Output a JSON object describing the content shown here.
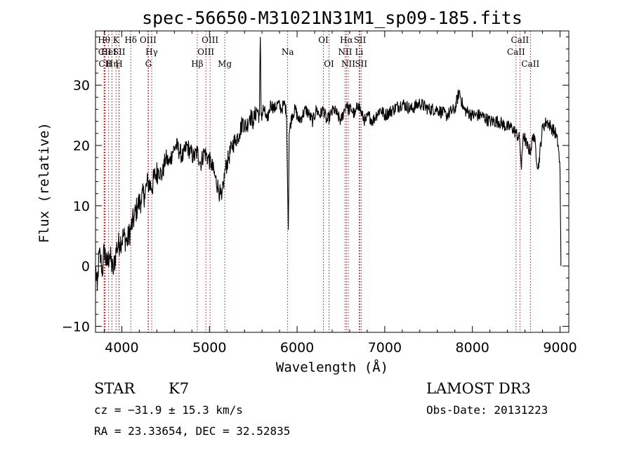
{
  "chart_data": {
    "type": "line",
    "title": "spec-56650-M31021N31M1_sp09-185.fits",
    "xlabel": "Wavelength (Å)",
    "ylabel": "Flux (relative)",
    "xlim": [
      3700,
      9100
    ],
    "ylim": [
      -11,
      39
    ],
    "xticks": [
      4000,
      5000,
      6000,
      7000,
      8000,
      9000
    ],
    "yticks": [
      -10,
      0,
      10,
      20,
      30
    ],
    "series": [
      {
        "name": "flux",
        "x": [
          3700,
          3720,
          3740,
          3760,
          3780,
          3800,
          3830,
          3860,
          3900,
          3940,
          3980,
          4020,
          4060,
          4100,
          4140,
          4180,
          4220,
          4260,
          4300,
          4340,
          4380,
          4420,
          4460,
          4500,
          4540,
          4580,
          4620,
          4660,
          4700,
          4740,
          4780,
          4820,
          4860,
          4900,
          4940,
          4980,
          5020,
          5060,
          5100,
          5140,
          5180,
          5220,
          5260,
          5300,
          5340,
          5380,
          5420,
          5460,
          5500,
          5540,
          5570,
          5580,
          5590,
          5620,
          5660,
          5700,
          5740,
          5780,
          5820,
          5860,
          5880,
          5895,
          5900,
          5910,
          5940,
          5980,
          6020,
          6060,
          6100,
          6140,
          6180,
          6220,
          6260,
          6300,
          6340,
          6380,
          6420,
          6460,
          6500,
          6540,
          6563,
          6580,
          6620,
          6660,
          6700,
          6740,
          6780,
          6820,
          6860,
          6900,
          6950,
          7000,
          7100,
          7200,
          7300,
          7400,
          7500,
          7600,
          7700,
          7800,
          7850,
          7900,
          8000,
          8100,
          8200,
          8300,
          8400,
          8450,
          8500,
          8540,
          8560,
          8580,
          8620,
          8660,
          8700,
          8750,
          8800,
          8850,
          8900,
          8950,
          8980,
          9000,
          9010
        ],
        "y": [
          0,
          -4,
          2,
          1,
          -1,
          3,
          0,
          2,
          -1,
          3,
          4,
          5,
          4,
          6,
          8,
          10,
          11,
          12,
          14,
          13,
          15,
          16,
          15,
          18,
          17,
          19,
          20,
          19,
          18,
          20,
          19,
          18,
          19,
          17,
          19,
          18,
          17,
          15,
          13,
          11,
          16,
          18,
          20,
          21,
          22,
          24,
          23,
          25,
          24,
          26,
          25,
          38,
          25,
          26,
          24,
          27,
          26,
          27,
          26,
          27,
          25,
          10,
          6,
          22,
          25,
          26,
          24,
          25,
          26,
          25,
          24,
          26,
          25,
          26,
          24,
          25,
          26,
          25,
          24,
          26,
          27,
          26,
          26,
          25,
          27,
          25,
          24,
          25,
          24,
          25,
          26,
          25,
          26,
          27,
          26,
          27,
          26,
          26,
          25,
          26,
          29,
          26,
          25,
          25,
          24,
          24,
          23,
          23,
          22,
          21,
          16,
          22,
          20,
          19,
          22,
          16,
          23,
          24,
          23,
          22,
          20,
          16,
          0
        ]
      }
    ],
    "spectral_lines": [
      {
        "label": "Hθ",
        "x": 3797,
        "row": 1
      },
      {
        "label": "CII",
        "x": 3805,
        "row": 2
      },
      {
        "label": "CII",
        "x": 3810,
        "row": 3
      },
      {
        "label": "HeI",
        "x": 3850,
        "row": 2
      },
      {
        "label": "Hη",
        "x": 3889,
        "row": 3
      },
      {
        "label": "K",
        "x": 3934,
        "row": 1
      },
      {
        "label": "SII",
        "x": 3970,
        "row": 2
      },
      {
        "label": "H",
        "x": 3968,
        "row": 3
      },
      {
        "label": "Hδ",
        "x": 4102,
        "row": 1
      },
      {
        "label": "OIII",
        "x": 4300,
        "row": 1
      },
      {
        "label": "Hγ",
        "x": 4341,
        "row": 2
      },
      {
        "label": "G",
        "x": 4304,
        "row": 3
      },
      {
        "label": "OIII",
        "x": 5007,
        "row": 1
      },
      {
        "label": "OIII",
        "x": 4959,
        "row": 2
      },
      {
        "label": "Hβ",
        "x": 4861,
        "row": 3
      },
      {
        "label": "Mg",
        "x": 5175,
        "row": 3
      },
      {
        "label": "Na",
        "x": 5893,
        "row": 2
      },
      {
        "label": "OI",
        "x": 6300,
        "row": 1
      },
      {
        "label": "OI",
        "x": 6364,
        "row": 3
      },
      {
        "label": "Hα",
        "x": 6563,
        "row": 1
      },
      {
        "label": "NII",
        "x": 6548,
        "row": 2
      },
      {
        "label": "NII",
        "x": 6584,
        "row": 3
      },
      {
        "label": "SII",
        "x": 6717,
        "row": 1
      },
      {
        "label": "Li",
        "x": 6708,
        "row": 2
      },
      {
        "label": "SII",
        "x": 6731,
        "row": 3
      },
      {
        "label": "CaII",
        "x": 8542,
        "row": 1
      },
      {
        "label": "CaII",
        "x": 8498,
        "row": 2
      },
      {
        "label": "CaII",
        "x": 8662,
        "row": 3
      }
    ],
    "line_color": "#b22222"
  },
  "info": {
    "object_class": "STAR",
    "subclass": "K7",
    "survey": "LAMOST DR3",
    "cz": "cz = −31.9 ± 15.3 km/s",
    "obs_date": "Obs-Date: 20131223",
    "coords": "RA =  23.33654, DEC =  32.52835"
  }
}
